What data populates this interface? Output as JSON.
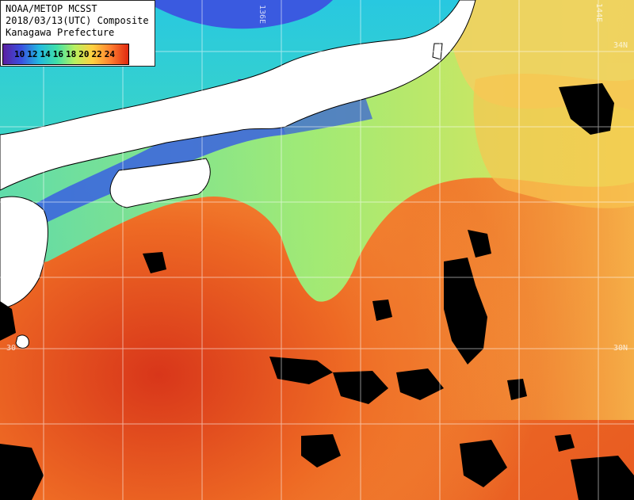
{
  "title": {
    "line1": "NOAA/METOP MCSST",
    "line2": "2018/03/13(UTC) Composite",
    "line3": "Kanagawa Prefecture"
  },
  "legend": {
    "values": [
      "10",
      "12",
      "14",
      "16",
      "18",
      "20",
      "22",
      "24"
    ],
    "gradient": [
      "#5a1fa0",
      "#3a4fe0",
      "#22b8e0",
      "#40e0a8",
      "#b8f060",
      "#ffd040",
      "#ff8030",
      "#e02810"
    ]
  },
  "grid_labels": {
    "lon_136": "136E",
    "lon_144": "144E",
    "lat_34": "34N",
    "lat_30_left": "30",
    "lat_30_right": "30N"
  },
  "colors": {
    "land": "#ffffff",
    "cloud": "#000000",
    "grid": "#ffffff",
    "sst_warm": "#e8501c",
    "sst_mid": "#f8b040",
    "sst_cool": "#78e080",
    "sst_cold": "#2850e0"
  }
}
